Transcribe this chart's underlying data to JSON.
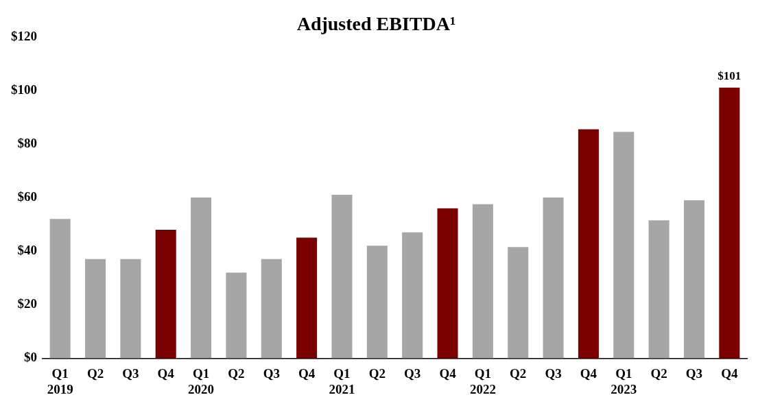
{
  "chart_data": {
    "type": "bar",
    "title": "Adjusted EBITDA¹",
    "categories": [
      "Q1\n2019",
      "Q2",
      "Q3",
      "Q4",
      "Q1\n2020",
      "Q2",
      "Q3",
      "Q4",
      "Q1\n2021",
      "Q2",
      "Q3",
      "Q4",
      "Q1\n2022",
      "Q2",
      "Q3",
      "Q4",
      "Q1\n2023",
      "Q2",
      "Q3",
      "Q4"
    ],
    "values": [
      52,
      37,
      37,
      48,
      60,
      32,
      37,
      45,
      61,
      42,
      47,
      56,
      57.5,
      41.5,
      60,
      85.5,
      84.5,
      51.5,
      59,
      101
    ],
    "colors": [
      "#a6a6a6",
      "#a6a6a6",
      "#a6a6a6",
      "#7b0000",
      "#a6a6a6",
      "#a6a6a6",
      "#a6a6a6",
      "#7b0000",
      "#a6a6a6",
      "#a6a6a6",
      "#a6a6a6",
      "#7b0000",
      "#a6a6a6",
      "#a6a6a6",
      "#a6a6a6",
      "#7b0000",
      "#a6a6a6",
      "#a6a6a6",
      "#a6a6a6",
      "#7b0000"
    ],
    "value_labels": [
      null,
      null,
      null,
      null,
      null,
      null,
      null,
      null,
      null,
      null,
      null,
      null,
      null,
      null,
      null,
      null,
      null,
      null,
      null,
      "$101"
    ],
    "ylim": [
      0,
      120
    ],
    "yticks": [
      {
        "value": 0,
        "label": "$0"
      },
      {
        "value": 20,
        "label": "$20"
      },
      {
        "value": 40,
        "label": "$40"
      },
      {
        "value": 60,
        "label": "$60"
      },
      {
        "value": 80,
        "label": "$80"
      },
      {
        "value": 100,
        "label": "$100"
      },
      {
        "value": 120,
        "label": "$120"
      }
    ],
    "grid": false,
    "legend": false
  }
}
